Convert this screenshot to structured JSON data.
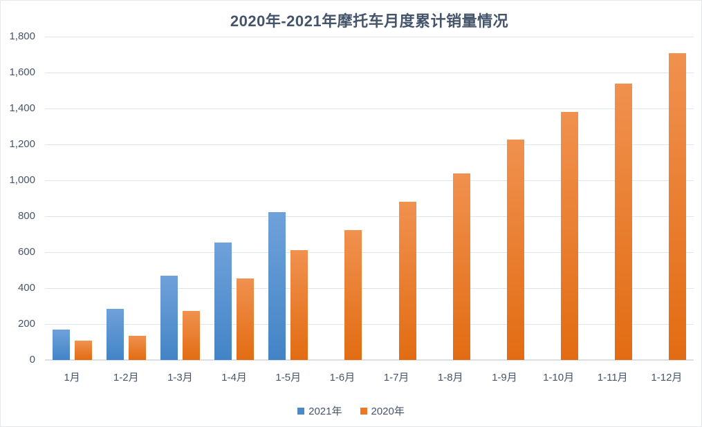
{
  "chart_data": {
    "type": "bar",
    "title": "2020年-2021年摩托车月度累计销量情况",
    "xlabel": "",
    "ylabel": "",
    "categories": [
      "1月",
      "1-2月",
      "1-3月",
      "1-4月",
      "1-5月",
      "1-6月",
      "1-7月",
      "1-8月",
      "1-9月",
      "1-10月",
      "1-11月",
      "1-12月"
    ],
    "series": [
      {
        "name": "2021年",
        "color_top": "#6fa1da",
        "color_bottom": "#4384c6",
        "legend_color": "#4f88c7",
        "values": [
          170,
          285,
          470,
          653,
          825,
          null,
          null,
          null,
          null,
          null,
          null,
          null
        ]
      },
      {
        "name": "2020年",
        "color_top": "#f0914f",
        "color_bottom": "#e26c12",
        "legend_color": "#ec7a25",
        "values": [
          107,
          135,
          272,
          455,
          610,
          723,
          880,
          1040,
          1228,
          1382,
          1540,
          1707
        ]
      }
    ],
    "ylim": [
      0,
      1800
    ],
    "y_ticks": [
      {
        "value": 0,
        "label": "0"
      },
      {
        "value": 200,
        "label": "200"
      },
      {
        "value": 400,
        "label": "400"
      },
      {
        "value": 600,
        "label": "600"
      },
      {
        "value": 800,
        "label": "800"
      },
      {
        "value": 1000,
        "label": "1,000"
      },
      {
        "value": 1200,
        "label": "1,200"
      },
      {
        "value": 1400,
        "label": "1,400"
      },
      {
        "value": 1600,
        "label": "1,600"
      },
      {
        "value": 1800,
        "label": "1,800"
      }
    ],
    "grid": "horizontal",
    "legend_position": "bottom"
  },
  "colors": {
    "title_text": "#44546A",
    "axis_text": "#44546A",
    "gridline": "#dde5ed",
    "baseline": "#d9dfe5",
    "background": "#ffffff"
  }
}
